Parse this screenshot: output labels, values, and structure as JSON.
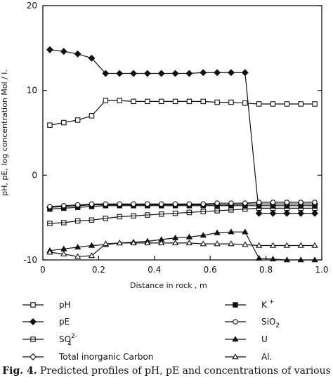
{
  "chart_data": {
    "type": "line",
    "xlabel": "Distance in rock , m",
    "ylabel": "pH, pE, log concentration  Mol / l.",
    "xlim": [
      0,
      1.0
    ],
    "ylim": [
      -10,
      20
    ],
    "xticks": [
      "0",
      "0.2",
      "0.4",
      "0.6",
      "0.8",
      "1.0"
    ],
    "yticks": [
      "-10",
      "0",
      "10",
      "20"
    ],
    "grid": false,
    "legend_position": "bottom",
    "series": [
      {
        "name": "pH",
        "marker": "open-square",
        "x": [
          0.025,
          0.075,
          0.125,
          0.175,
          0.225,
          0.275,
          0.325,
          0.375,
          0.425,
          0.475,
          0.525,
          0.575,
          0.625,
          0.675,
          0.725,
          0.775,
          0.825,
          0.875,
          0.925,
          0.975
        ],
        "y": [
          5.9,
          6.2,
          6.5,
          7.0,
          8.8,
          8.8,
          8.7,
          8.7,
          8.7,
          8.7,
          8.7,
          8.7,
          8.6,
          8.6,
          8.5,
          8.4,
          8.4,
          8.4,
          8.4,
          8.4
        ]
      },
      {
        "name": "pE",
        "marker": "filled-diamond",
        "x": [
          0.025,
          0.075,
          0.125,
          0.175,
          0.225,
          0.275,
          0.325,
          0.375,
          0.425,
          0.475,
          0.525,
          0.575,
          0.625,
          0.675,
          0.725,
          0.775,
          0.825,
          0.875,
          0.925,
          0.975
        ],
        "y": [
          14.8,
          14.6,
          14.3,
          13.8,
          12.0,
          12.0,
          12.0,
          12.0,
          12.0,
          12.0,
          12.0,
          12.1,
          12.1,
          12.1,
          12.1,
          -4.5,
          -4.5,
          -4.5,
          -4.5,
          -4.5
        ]
      },
      {
        "name": "SO4 2-",
        "marker": "square-bar",
        "x": [
          0.025,
          0.075,
          0.125,
          0.175,
          0.225,
          0.275,
          0.325,
          0.375,
          0.425,
          0.475,
          0.525,
          0.575,
          0.625,
          0.675,
          0.725,
          0.775,
          0.825,
          0.875,
          0.925,
          0.975
        ],
        "y": [
          -5.7,
          -5.6,
          -5.4,
          -5.3,
          -5.1,
          -4.9,
          -4.8,
          -4.7,
          -4.6,
          -4.5,
          -4.4,
          -4.3,
          -4.2,
          -4.1,
          -4.0,
          -3.9,
          -3.9,
          -3.9,
          -3.9,
          -3.9
        ]
      },
      {
        "name": "Total inorganic Carbon",
        "marker": "open-diamond",
        "x": [
          0.025,
          0.075,
          0.125,
          0.175,
          0.225,
          0.275,
          0.325,
          0.375,
          0.425,
          0.475,
          0.525,
          0.575,
          0.625,
          0.675,
          0.725,
          0.775,
          0.825,
          0.875,
          0.925,
          0.975
        ],
        "y": [
          -3.8,
          -3.7,
          -3.6,
          -3.5,
          -3.5,
          -3.5,
          -3.5,
          -3.5,
          -3.5,
          -3.5,
          -3.5,
          -3.5,
          -3.5,
          -3.5,
          -3.4,
          -3.4,
          -3.4,
          -3.4,
          -3.4,
          -3.4
        ]
      },
      {
        "name": "K +",
        "marker": "filled-square",
        "x": [
          0.025,
          0.075,
          0.125,
          0.175,
          0.225,
          0.275,
          0.325,
          0.375,
          0.425,
          0.475,
          0.525,
          0.575,
          0.625,
          0.675,
          0.725,
          0.775,
          0.825,
          0.875,
          0.925,
          0.975
        ],
        "y": [
          -4.0,
          -3.9,
          -3.8,
          -3.7,
          -3.6,
          -3.6,
          -3.6,
          -3.6,
          -3.6,
          -3.6,
          -3.6,
          -3.6,
          -3.6,
          -3.6,
          -3.6,
          -3.6,
          -3.6,
          -3.6,
          -3.6,
          -3.6
        ]
      },
      {
        "name": "SiO2",
        "marker": "open-circle",
        "x": [
          0.025,
          0.075,
          0.125,
          0.175,
          0.225,
          0.275,
          0.325,
          0.375,
          0.425,
          0.475,
          0.525,
          0.575,
          0.625,
          0.675,
          0.725,
          0.775,
          0.825,
          0.875,
          0.925,
          0.975
        ],
        "y": [
          -3.7,
          -3.6,
          -3.5,
          -3.4,
          -3.4,
          -3.4,
          -3.4,
          -3.4,
          -3.4,
          -3.4,
          -3.4,
          -3.4,
          -3.3,
          -3.3,
          -3.3,
          -3.2,
          -3.2,
          -3.2,
          -3.2,
          -3.2
        ]
      },
      {
        "name": "U",
        "marker": "filled-triangle",
        "x": [
          0.025,
          0.075,
          0.125,
          0.175,
          0.225,
          0.275,
          0.325,
          0.375,
          0.425,
          0.475,
          0.525,
          0.575,
          0.625,
          0.675,
          0.725,
          0.775,
          0.825,
          0.875,
          0.925,
          0.975
        ],
        "y": [
          -8.9,
          -8.7,
          -8.5,
          -8.3,
          -8.2,
          -8.0,
          -7.9,
          -7.8,
          -7.6,
          -7.4,
          -7.3,
          -7.1,
          -6.8,
          -6.7,
          -6.7,
          -9.8,
          -9.9,
          -10.0,
          -10.0,
          -10.0
        ]
      },
      {
        "name": "Al.",
        "marker": "open-triangle",
        "x": [
          0.025,
          0.075,
          0.125,
          0.175,
          0.225,
          0.275,
          0.325,
          0.375,
          0.425,
          0.475,
          0.525,
          0.575,
          0.625,
          0.675,
          0.725,
          0.775,
          0.825,
          0.875,
          0.925,
          0.975
        ],
        "y": [
          -9.1,
          -9.3,
          -9.6,
          -9.5,
          -8.1,
          -8.0,
          -8.0,
          -8.0,
          -8.0,
          -8.0,
          -8.0,
          -8.1,
          -8.1,
          -8.1,
          -8.2,
          -8.3,
          -8.3,
          -8.3,
          -8.3,
          -8.3
        ]
      }
    ]
  },
  "legend": {
    "left": [
      {
        "label": "pH",
        "marker": "open-square"
      },
      {
        "label": "pE",
        "marker": "filled-diamond"
      },
      {
        "label": "SO",
        "sub": "4",
        "sup": "2-",
        "marker": "square-bar"
      },
      {
        "label": "Total inorganic Carbon",
        "marker": "open-diamond"
      }
    ],
    "right": [
      {
        "label": "K",
        "sup": "+",
        "marker": "filled-square"
      },
      {
        "label": "SiO",
        "sub": "2",
        "marker": "open-circle"
      },
      {
        "label": "U",
        "marker": "filled-triangle"
      },
      {
        "label": "Al.",
        "marker": "open-triangle"
      }
    ]
  },
  "caption": {
    "label": "Fig. 4.",
    "text": " Predicted profiles of pH, pE and concentrations of various"
  }
}
